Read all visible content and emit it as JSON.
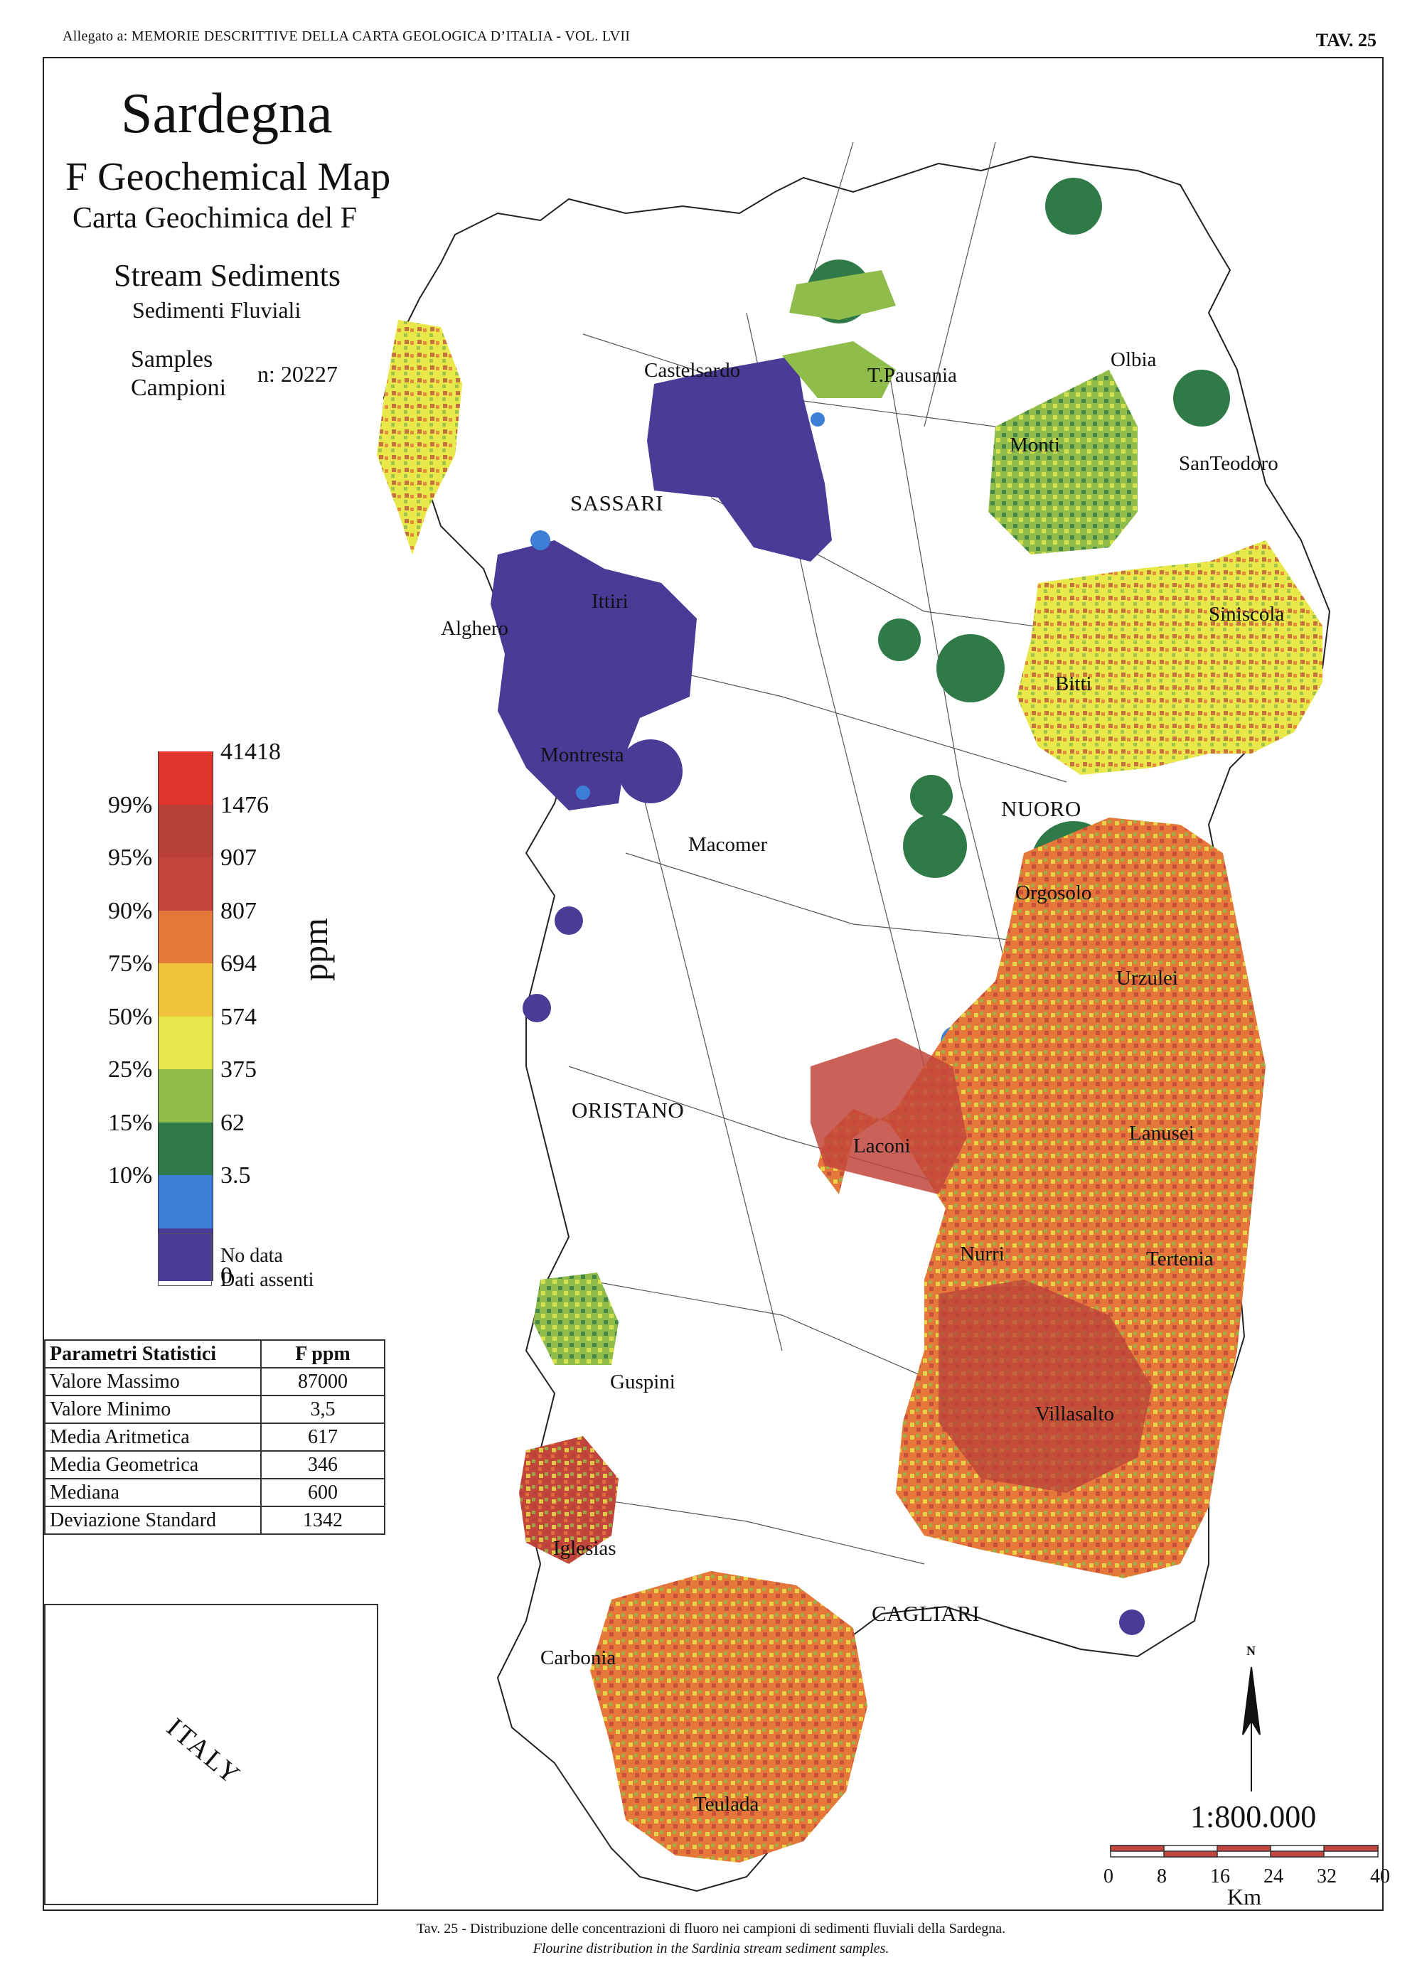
{
  "header": {
    "left": "Allegato a: MEMORIE DESCRITTIVE DELLA CARTA GEOLOGICA D’ITALIA - VOL. LVII",
    "right": "TAV. 25"
  },
  "title": {
    "main": "Sardegna",
    "sub1": "F Geochemical Map",
    "sub2": "Carta Geochimica del F",
    "sub3": "Stream Sediments",
    "sub4": "Sedimenti Fluviali",
    "samples_en": "Samples",
    "samples_it": "Campioni",
    "n": "n: 20227"
  },
  "legend": {
    "unit": "ppm",
    "classes": [
      {
        "color": "#e0362e",
        "value": "41418",
        "pct": ""
      },
      {
        "color": "#b8403a",
        "value": "1476",
        "pct": "99%"
      },
      {
        "color": "#c2463c",
        "value": "907",
        "pct": "95%"
      },
      {
        "color": "#e6773a",
        "value": "807",
        "pct": "90%"
      },
      {
        "color": "#f1c23c",
        "value": "694",
        "pct": "75%"
      },
      {
        "color": "#e8e84a",
        "value": "574",
        "pct": "50%"
      },
      {
        "color": "#8fbc4a",
        "value": "375",
        "pct": "25%"
      },
      {
        "color": "#2f7a48",
        "value": "62",
        "pct": "15%"
      },
      {
        "color": "#3d7fd6",
        "value": "3.5",
        "pct": "10%"
      },
      {
        "color": "#4b3a96",
        "value": "0",
        "pct": ""
      }
    ],
    "nodata_en": "No data",
    "nodata_it": "Dati assenti"
  },
  "stats": {
    "header_label": "Parametri Statistici",
    "header_unit": "F   ppm",
    "rows": [
      {
        "label": "Valore Massimo",
        "value": "87000"
      },
      {
        "label": "Valore Minimo",
        "value": "3,5"
      },
      {
        "label": "Media Aritmetica",
        "value": "617"
      },
      {
        "label": "Media Geometrica",
        "value": "346"
      },
      {
        "label": "Mediana",
        "value": "600"
      },
      {
        "label": "Deviazione Standard",
        "value": "1342"
      }
    ]
  },
  "inset": {
    "label": "ITALY"
  },
  "north": "N",
  "scale": {
    "ratio": "1:800.000",
    "ticks": [
      "0",
      "8",
      "16",
      "24",
      "32",
      "40"
    ],
    "unit": "Km"
  },
  "places": [
    {
      "name": "Castelsardo"
    },
    {
      "name": "T.Pausania"
    },
    {
      "name": "Olbia"
    },
    {
      "name": "Monti"
    },
    {
      "name": "SanTeodoro"
    },
    {
      "name": "SASSARI"
    },
    {
      "name": "Ittiri"
    },
    {
      "name": "Alghero"
    },
    {
      "name": "Siniscola"
    },
    {
      "name": "Bitti"
    },
    {
      "name": "Montresta"
    },
    {
      "name": "NUORO"
    },
    {
      "name": "Macomer"
    },
    {
      "name": "Orgosolo"
    },
    {
      "name": "Urzulei"
    },
    {
      "name": "ORISTANO"
    },
    {
      "name": "Laconi"
    },
    {
      "name": "Lanusei"
    },
    {
      "name": "Nurri"
    },
    {
      "name": "Tertenia"
    },
    {
      "name": "Guspini"
    },
    {
      "name": "Villasalto"
    },
    {
      "name": "Iglesias"
    },
    {
      "name": "CAGLIARI"
    },
    {
      "name": "Carbonia"
    },
    {
      "name": "Teulada"
    }
  ],
  "caption": {
    "it": "Tav. 25 - Distribuzione delle concentrazioni di fluoro nei campioni di sedimenti fluviali della Sardegna.",
    "en": "Flourine distribution in the Sardinia stream sediment samples."
  }
}
